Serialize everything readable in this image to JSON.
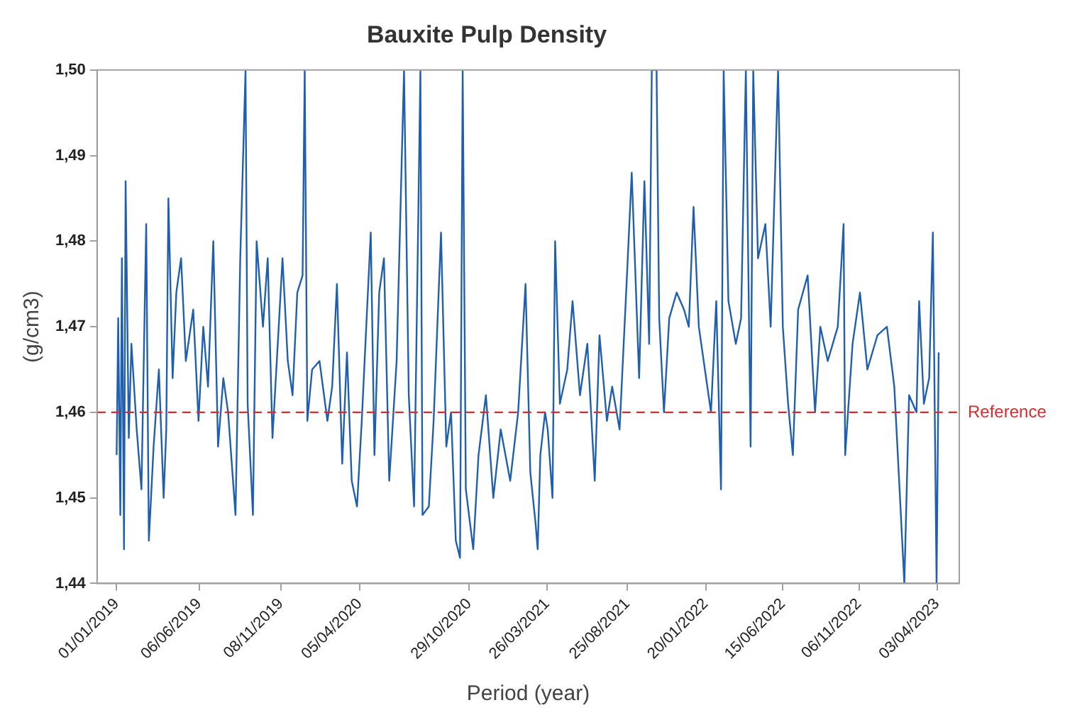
{
  "chart_data": {
    "type": "line",
    "title": "Bauxite Pulp Density",
    "xlabel": "Period (year)",
    "ylabel": "(g/cm3)",
    "grid": false,
    "legend": false,
    "marker": "none",
    "line_style": "solid",
    "xlim": [
      "2018-11-25",
      "2023-05-15"
    ],
    "xticks": [
      {
        "value": "2019-01-01",
        "label": "01/01/2019"
      },
      {
        "value": "2019-06-06",
        "label": "06/06/2019"
      },
      {
        "value": "2019-11-08",
        "label": "08/11/2019"
      },
      {
        "value": "2020-04-05",
        "label": "05/04/2020"
      },
      {
        "value": "2020-10-29",
        "label": "29/10/2020"
      },
      {
        "value": "2021-03-26",
        "label": "26/03/2021"
      },
      {
        "value": "2021-08-25",
        "label": "25/08/2021"
      },
      {
        "value": "2022-01-20",
        "label": "20/01/2022"
      },
      {
        "value": "2022-06-15",
        "label": "15/06/2022"
      },
      {
        "value": "2022-11-06",
        "label": "06/11/2022"
      },
      {
        "value": "2023-04-03",
        "label": "03/04/2023"
      }
    ],
    "ylim": [
      1.44,
      1.5
    ],
    "yticks": [
      {
        "value": 1.44,
        "label": "1,44"
      },
      {
        "value": 1.45,
        "label": "1,45"
      },
      {
        "value": 1.46,
        "label": "1,46"
      },
      {
        "value": 1.47,
        "label": "1,47"
      },
      {
        "value": 1.48,
        "label": "1,48"
      },
      {
        "value": 1.49,
        "label": "1,49"
      },
      {
        "value": 1.5,
        "label": "1,50"
      }
    ],
    "ref_lines": [
      {
        "axis": "y",
        "value": 1.46,
        "label": "Reference",
        "color": "#d03030",
        "line_style": "dashed"
      }
    ],
    "series": [
      {
        "color": "#1f5fae",
        "x": [
          "2019-01-01",
          "2019-01-04",
          "2019-01-08",
          "2019-01-11",
          "2019-01-15",
          "2019-01-18",
          "2019-01-24",
          "2019-01-29",
          "2019-02-08",
          "2019-02-17",
          "2019-02-26",
          "2019-03-03",
          "2019-03-12",
          "2019-03-22",
          "2019-03-31",
          "2019-04-05",
          "2019-04-09",
          "2019-04-17",
          "2019-04-24",
          "2019-05-03",
          "2019-05-12",
          "2019-05-26",
          "2019-06-05",
          "2019-06-14",
          "2019-06-23",
          "2019-07-03",
          "2019-07-12",
          "2019-07-22",
          "2019-07-31",
          "2019-08-14",
          "2019-08-23",
          "2019-09-02",
          "2019-09-06",
          "2019-09-16",
          "2019-09-23",
          "2019-10-05",
          "2019-10-14",
          "2019-10-23",
          "2019-11-02",
          "2019-11-11",
          "2019-11-21",
          "2019-11-30",
          "2019-12-09",
          "2019-12-19",
          "2019-12-23",
          "2019-12-28",
          "2020-01-06",
          "2020-01-20",
          "2020-02-04",
          "2020-02-13",
          "2020-02-22",
          "2020-03-03",
          "2020-03-12",
          "2020-03-21",
          "2020-03-31",
          "2020-04-09",
          "2020-04-26",
          "2020-05-03",
          "2020-05-12",
          "2020-05-21",
          "2020-05-31",
          "2020-06-14",
          "2020-06-28",
          "2020-07-07",
          "2020-07-17",
          "2020-07-29",
          "2020-08-02",
          "2020-08-14",
          "2020-08-23",
          "2020-09-06",
          "2020-09-16",
          "2020-09-25",
          "2020-10-04",
          "2020-10-12",
          "2020-10-17",
          "2020-10-23",
          "2020-11-06",
          "2020-11-16",
          "2020-11-30",
          "2020-12-14",
          "2020-12-28",
          "2021-01-15",
          "2021-01-30",
          "2021-02-13",
          "2021-02-22",
          "2021-03-04",
          "2021-03-08",
          "2021-03-13",
          "2021-03-22",
          "2021-03-27",
          "2021-04-05",
          "2021-04-10",
          "2021-04-19",
          "2021-05-03",
          "2021-05-13",
          "2021-05-27",
          "2021-06-10",
          "2021-06-24",
          "2021-07-03",
          "2021-07-17",
          "2021-07-27",
          "2021-08-10",
          "2021-08-24",
          "2021-09-02",
          "2021-09-16",
          "2021-09-26",
          "2021-10-05",
          "2021-10-10",
          "2021-10-19",
          "2021-10-24",
          "2021-11-02",
          "2021-11-12",
          "2021-11-26",
          "2021-12-10",
          "2021-12-19",
          "2021-12-28",
          "2022-01-07",
          "2022-01-30",
          "2022-02-09",
          "2022-02-18",
          "2022-02-23",
          "2022-03-04",
          "2022-03-18",
          "2022-03-28",
          "2022-04-06",
          "2022-04-15",
          "2022-04-20",
          "2022-04-29",
          "2022-05-13",
          "2022-05-23",
          "2022-06-06",
          "2022-06-15",
          "2022-06-25",
          "2022-07-04",
          "2022-07-14",
          "2022-08-01",
          "2022-08-15",
          "2022-08-25",
          "2022-09-08",
          "2022-09-27",
          "2022-10-08",
          "2022-10-11",
          "2022-10-25",
          "2022-11-08",
          "2022-11-22",
          "2022-12-11",
          "2022-12-29",
          "2023-01-12",
          "2023-01-22",
          "2023-01-31",
          "2023-02-09",
          "2023-02-23",
          "2023-02-28",
          "2023-03-09",
          "2023-03-19",
          "2023-03-26",
          "2023-04-02",
          "2023-04-06"
        ],
        "values": [
          1.455,
          1.471,
          1.448,
          1.478,
          1.444,
          1.487,
          1.457,
          1.468,
          1.458,
          1.451,
          1.482,
          1.445,
          1.456,
          1.465,
          1.45,
          1.458,
          1.485,
          1.464,
          1.474,
          1.478,
          1.466,
          1.472,
          1.459,
          1.47,
          1.463,
          1.48,
          1.456,
          1.464,
          1.46,
          1.448,
          1.478,
          1.5,
          1.461,
          1.448,
          1.48,
          1.47,
          1.478,
          1.457,
          1.468,
          1.478,
          1.466,
          1.462,
          1.474,
          1.476,
          1.5,
          1.459,
          1.465,
          1.466,
          1.459,
          1.463,
          1.475,
          1.454,
          1.467,
          1.452,
          1.449,
          1.459,
          1.481,
          1.455,
          1.474,
          1.478,
          1.452,
          1.466,
          1.5,
          1.462,
          1.449,
          1.5,
          1.448,
          1.449,
          1.459,
          1.481,
          1.456,
          1.46,
          1.445,
          1.443,
          1.5,
          1.451,
          1.444,
          1.455,
          1.462,
          1.45,
          1.458,
          1.452,
          1.46,
          1.475,
          1.453,
          1.447,
          1.444,
          1.455,
          1.46,
          1.458,
          1.45,
          1.48,
          1.461,
          1.465,
          1.473,
          1.462,
          1.468,
          1.452,
          1.469,
          1.459,
          1.463,
          1.458,
          1.476,
          1.488,
          1.464,
          1.487,
          1.468,
          1.5,
          1.5,
          1.471,
          1.46,
          1.471,
          1.474,
          1.472,
          1.47,
          1.484,
          1.47,
          1.46,
          1.473,
          1.451,
          1.5,
          1.473,
          1.468,
          1.471,
          1.5,
          1.456,
          1.5,
          1.478,
          1.482,
          1.47,
          1.5,
          1.47,
          1.461,
          1.455,
          1.472,
          1.476,
          1.46,
          1.47,
          1.466,
          1.47,
          1.482,
          1.455,
          1.468,
          1.474,
          1.465,
          1.469,
          1.47,
          1.463,
          1.451,
          1.44,
          1.462,
          1.46,
          1.473,
          1.461,
          1.464,
          1.481,
          1.44,
          1.467
        ]
      }
    ]
  }
}
